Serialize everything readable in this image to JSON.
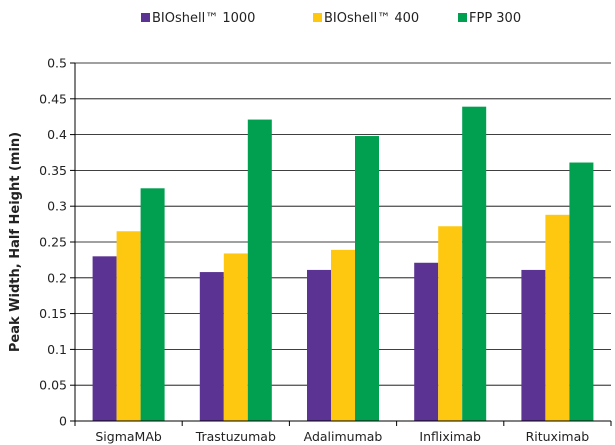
{
  "chart_data": {
    "type": "bar",
    "categories": [
      "SigmaMAb",
      "Trastuzumab",
      "Adalimumab",
      "Infliximab",
      "Rituximab"
    ],
    "series": [
      {
        "name": "BIOshell™ 1000",
        "color": "#5b3393",
        "values": [
          0.23,
          0.208,
          0.211,
          0.221,
          0.211
        ]
      },
      {
        "name": "BIOshell™ 400",
        "color": "#fdc80f",
        "values": [
          0.265,
          0.234,
          0.239,
          0.272,
          0.288
        ]
      },
      {
        "name": "FPP 300",
        "color": "#00a050",
        "values": [
          0.325,
          0.421,
          0.398,
          0.439,
          0.361
        ]
      }
    ],
    "xlabel": "",
    "ylabel": "Peak Width, Half Height (min)",
    "ylim": [
      0,
      0.5
    ],
    "yticks": [
      "0",
      "0.05",
      "0.1",
      "0.15",
      "0.2",
      "0.25",
      "0.3",
      "0.35",
      "0.4",
      "0.45",
      "0.5"
    ],
    "grid": "horizontal",
    "legend_position": "top-center"
  }
}
